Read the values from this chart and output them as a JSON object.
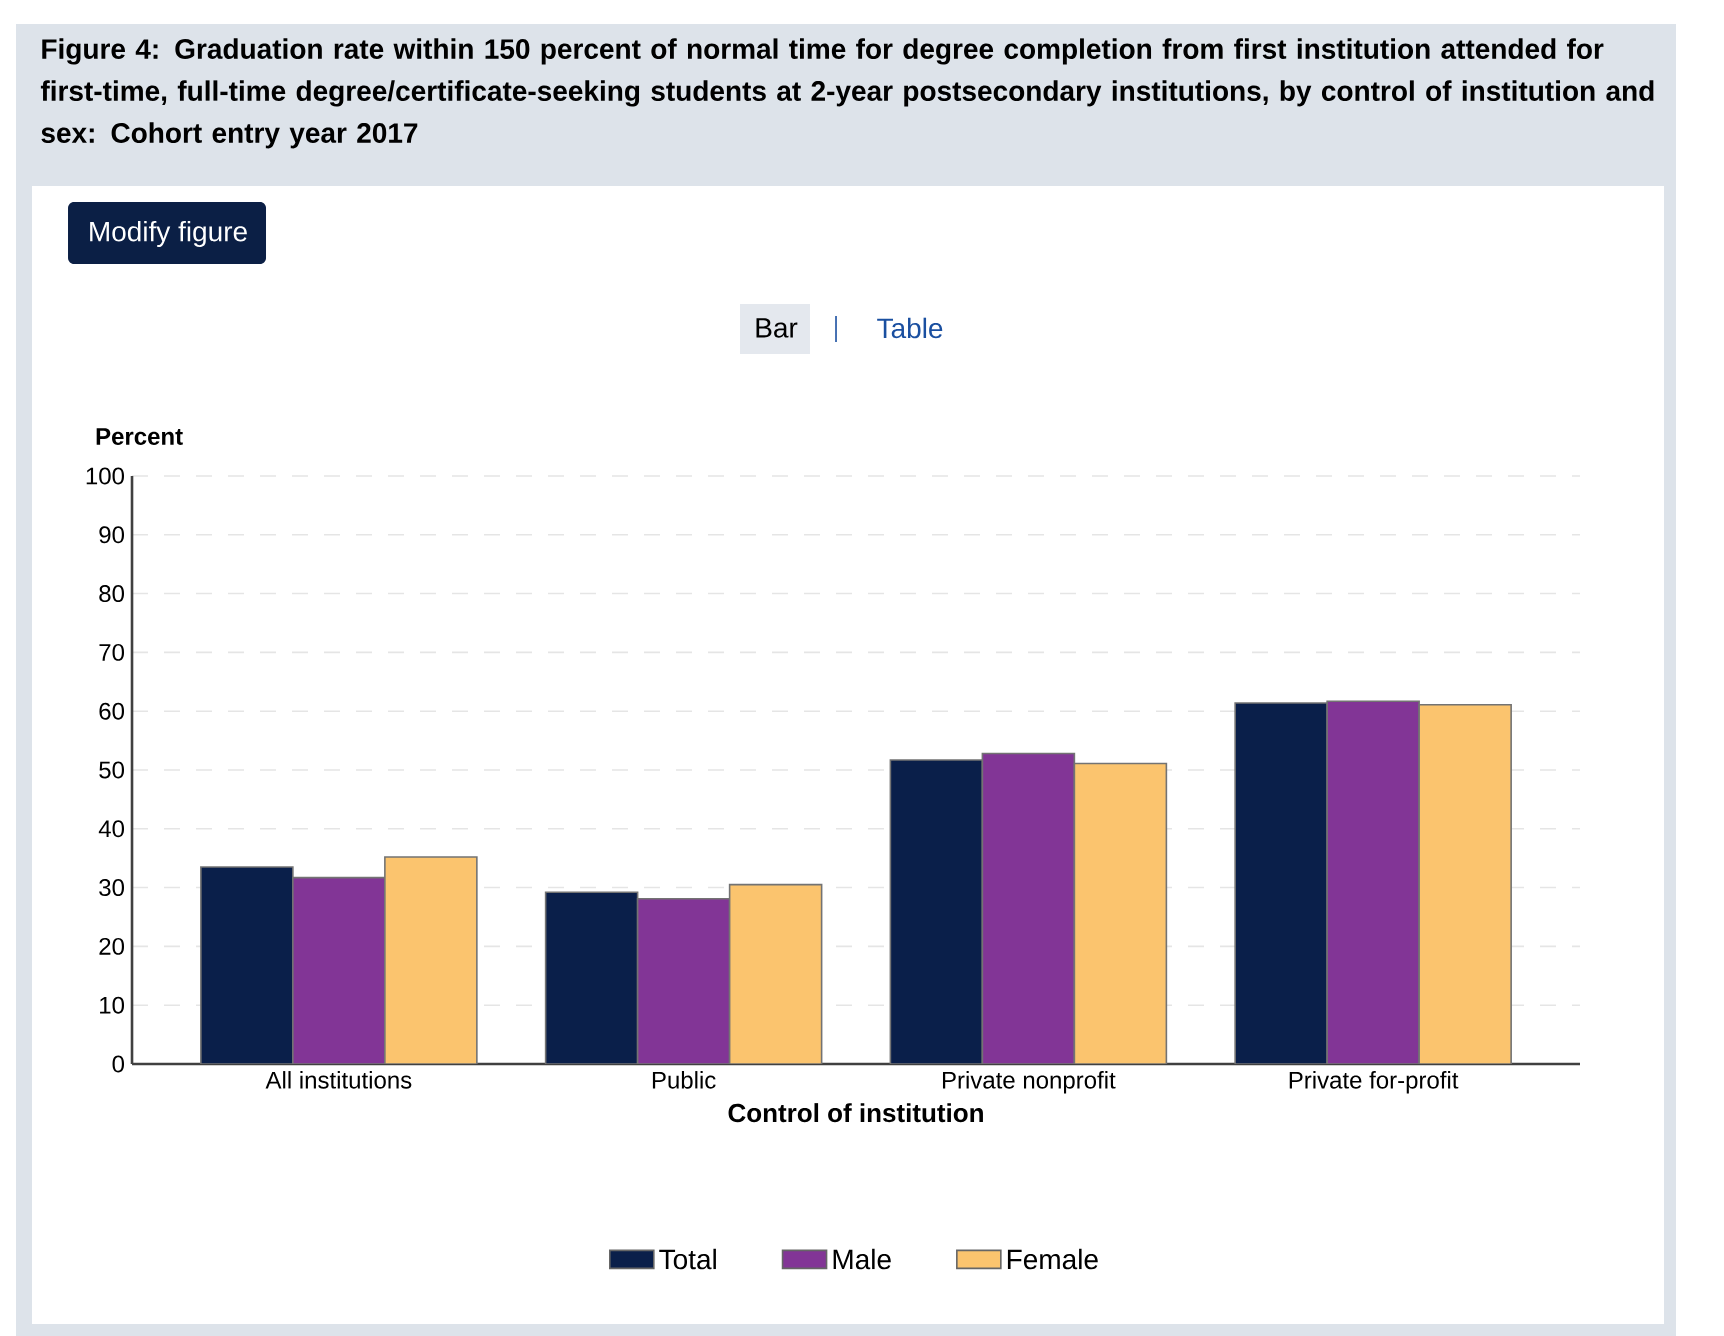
{
  "chart_data": {
    "type": "bar",
    "title": "Figure 4: Graduation rate within 150 percent of normal time for degree completion from first institution attended for first-time, full-time degree/certificate-seeking students at 2-year postsecondary institutions, by control of institution and sex: Cohort entry year 2017",
    "annotations": [
      "Modify figure",
      "Bar",
      "Table"
    ],
    "xlabel": "Control of institution",
    "ylabel": "Percent",
    "categories": [
      "All institutions",
      "Public",
      "Private nonprofit",
      "Private for-profit"
    ],
    "series": [
      {
        "name": "Total",
        "color": "#0a1f4a",
        "values": [
          33.5,
          29.2,
          51.7,
          61.4
        ]
      },
      {
        "name": "Male",
        "color": "#823596",
        "values": [
          31.7,
          28.1,
          52.8,
          61.7
        ]
      },
      {
        "name": "Female",
        "color": "#fbc46e",
        "values": [
          35.2,
          30.5,
          51.1,
          61.1
        ]
      }
    ],
    "ylim": [
      0,
      100
    ],
    "yticks": [
      0,
      10,
      20,
      30,
      40,
      50,
      60,
      70,
      80,
      90,
      100
    ],
    "grid": "y",
    "legend": "bottom"
  }
}
